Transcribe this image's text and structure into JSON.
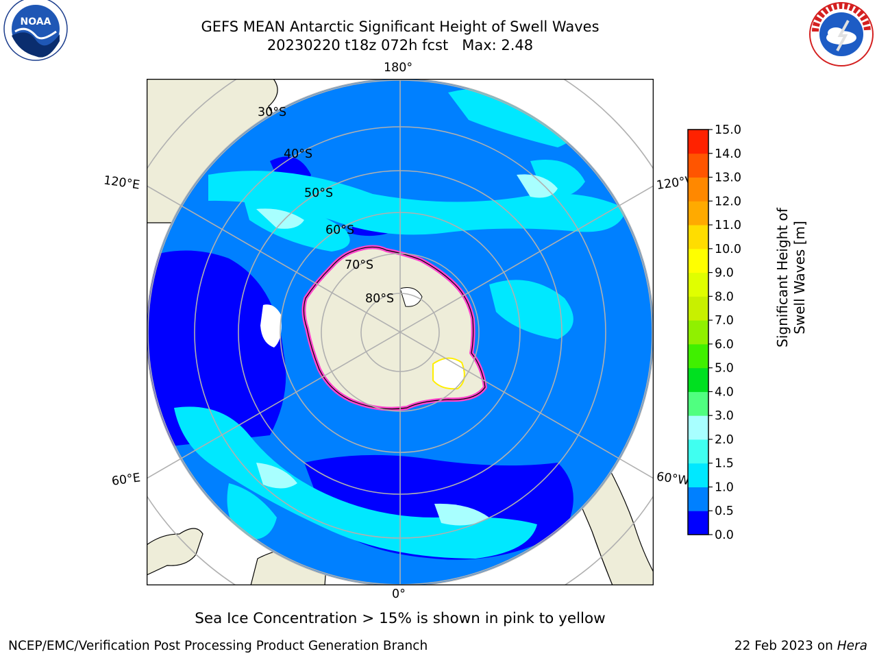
{
  "title": {
    "line1": "GEFS MEAN Antarctic Significant Height of Swell Waves",
    "line2": "20230220 t18z 072h fcst   Max: 2.48"
  },
  "logos": {
    "left": "noaa-logo",
    "right": "nws-logo"
  },
  "map": {
    "projection": "south-polar-stereographic",
    "lon_labels": [
      "180°",
      "120°E",
      "120°W",
      "60°E",
      "60°W",
      "0°"
    ],
    "lat_labels": [
      "30°S",
      "40°S",
      "50°S",
      "60°S",
      "70°S",
      "80°S"
    ],
    "colors": {
      "land": "#eeedd9",
      "grid": "#b0b0b0",
      "ice_pink": "#ff44cc",
      "ice_yellow": "#ffee00"
    }
  },
  "colorbar": {
    "label": "Significant Height of Swell Waves [m]",
    "ticks": [
      "0.0",
      "0.5",
      "1.0",
      "1.5",
      "2.0",
      "3.0",
      "4.0",
      "5.0",
      "6.0",
      "7.0",
      "8.0",
      "9.0",
      "10.0",
      "11.0",
      "12.0",
      "13.0",
      "14.0",
      "15.0"
    ],
    "colors": [
      "#0000ff",
      "#0080ff",
      "#00e8ff",
      "#40fff0",
      "#a8ffff",
      "#50ff80",
      "#00e020",
      "#40f000",
      "#90f000",
      "#c8f000",
      "#e0ff00",
      "#ffff00",
      "#ffdd00",
      "#ffaa00",
      "#ff8800",
      "#ff5500",
      "#ff2200"
    ]
  },
  "note": "Sea Ice Concentration > 15% is shown in pink to yellow",
  "footer": {
    "left": "NCEP/EMC/Verification Post Processing Product Generation Branch",
    "right_date": "22 Feb 2023 on ",
    "right_host": "Hera"
  }
}
